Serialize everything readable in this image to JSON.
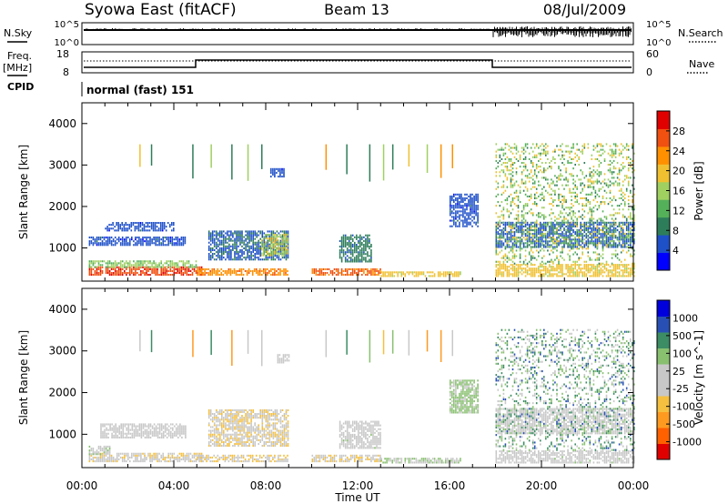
{
  "header": {
    "station": "Syowa East (fitACF)",
    "beam": "Beam 13",
    "date": "08/Jul/2009"
  },
  "top_panels": {
    "nsky_label": "N.Sky",
    "nsearch_label": "N.Search",
    "nsky_ticks": [
      "10^5",
      "10^0"
    ],
    "nsearch_ticks": [
      "10^5",
      "10^0"
    ],
    "freq_label_1": "Freq.",
    "freq_label_2": "[MHz]",
    "freq_ticks": [
      "18",
      "8"
    ],
    "nave_label": "Nave",
    "nave_ticks": [
      "60",
      "0"
    ],
    "cpid_label": "CPID",
    "cpid_text": "normal (fast) 151"
  },
  "colors": {
    "power": [
      "#0000ff",
      "#1e50c8",
      "#2e7d5a",
      "#55b05a",
      "#a0d060",
      "#f0c030",
      "#ff9000",
      "#f05010",
      "#e00000"
    ],
    "velocity": [
      "#e00000",
      "#ff6000",
      "#ff9a20",
      "#f5c040",
      "#c8c8c8",
      "#c8c8c8",
      "#88c070",
      "#3c8c64",
      "#2850b4",
      "#0000dc"
    ]
  },
  "chart_data": [
    {
      "type": "heatmap",
      "name": "power",
      "ylabel": "Slant Range [km]",
      "xlabel": "",
      "ylim": [
        200,
        4500
      ],
      "xlim_hours": [
        0,
        24
      ],
      "y_ticks": [
        "1000",
        "2000",
        "3000",
        "4000"
      ],
      "x_ticks": [
        "00:00",
        "04:00",
        "08:00",
        "12:00",
        "16:00",
        "20:00",
        "00:00"
      ],
      "colorbar": {
        "label": "Power [dB]",
        "ticks": [
          "4",
          "8",
          "12",
          "16",
          "20",
          "24",
          "28"
        ],
        "range": [
          0,
          30
        ]
      },
      "regions": [
        {
          "t0": 0.3,
          "t1": 5.2,
          "r0": 330,
          "r1": 520,
          "level": 26
        },
        {
          "t0": 0.3,
          "t1": 5.0,
          "r0": 520,
          "r1": 700,
          "level": 14
        },
        {
          "t0": 0.3,
          "t1": 4.5,
          "r0": 1050,
          "r1": 1250,
          "level": 5
        },
        {
          "t0": 1.0,
          "t1": 4.0,
          "r0": 1400,
          "r1": 1600,
          "level": 5
        },
        {
          "t0": 5.0,
          "t1": 9.0,
          "r0": 330,
          "r1": 480,
          "level": 22
        },
        {
          "t0": 5.5,
          "t1": 9.0,
          "r0": 700,
          "r1": 1400,
          "level": 6
        },
        {
          "t0": 7.8,
          "t1": 9.0,
          "r0": 800,
          "r1": 1300,
          "level": 16
        },
        {
          "t0": 8.2,
          "t1": 8.8,
          "r0": 2700,
          "r1": 2900,
          "level": 5
        },
        {
          "t0": 10.0,
          "t1": 13.0,
          "r0": 330,
          "r1": 500,
          "level": 24
        },
        {
          "t0": 11.2,
          "t1": 12.6,
          "r0": 650,
          "r1": 1300,
          "level": 8
        },
        {
          "t0": 13.0,
          "t1": 16.5,
          "r0": 300,
          "r1": 400,
          "level": 18
        },
        {
          "t0": 16.0,
          "t1": 17.2,
          "r0": 1500,
          "r1": 2300,
          "level": 5
        },
        {
          "t0": 18.0,
          "t1": 24.0,
          "r0": 300,
          "r1": 600,
          "level": 18
        },
        {
          "t0": 18.0,
          "t1": 24.0,
          "r0": 1000,
          "r1": 1600,
          "level": 6
        },
        {
          "t0": 18.0,
          "t1": 24.0,
          "r0": 600,
          "r1": 3500,
          "level": 14
        }
      ]
    },
    {
      "type": "heatmap",
      "name": "velocity",
      "ylabel": "Slant Range [km]",
      "xlabel": "Time UT",
      "ylim": [
        200,
        4500
      ],
      "xlim_hours": [
        0,
        24
      ],
      "y_ticks": [
        "1000",
        "2000",
        "3000",
        "4000"
      ],
      "x_ticks": [
        "00:00",
        "04:00",
        "08:00",
        "12:00",
        "16:00",
        "20:00",
        "00:00"
      ],
      "colorbar": {
        "label": "Velocity [m s^-1]",
        "ticks": [
          "-1000",
          "-500",
          "-100",
          "-25",
          "25",
          "100",
          "500",
          "1000"
        ],
        "range": [
          -1200,
          1200
        ]
      },
      "regions": [
        {
          "t0": 0.3,
          "t1": 5.2,
          "r0": 330,
          "r1": 520,
          "level": -150
        },
        {
          "t0": 0.3,
          "t1": 1.2,
          "r0": 500,
          "r1": 700,
          "level": 150
        },
        {
          "t0": 0.8,
          "t1": 4.5,
          "r0": 900,
          "r1": 1250,
          "level": 0
        },
        {
          "t0": 5.0,
          "t1": 9.0,
          "r0": 330,
          "r1": 480,
          "level": -200
        },
        {
          "t0": 5.5,
          "t1": 9.0,
          "r0": 700,
          "r1": 1600,
          "level": -200
        },
        {
          "t0": 8.5,
          "t1": 9.0,
          "r0": 2700,
          "r1": 2900,
          "level": 0
        },
        {
          "t0": 10.0,
          "t1": 13.0,
          "r0": 330,
          "r1": 500,
          "level": -200
        },
        {
          "t0": 11.2,
          "t1": 13.0,
          "r0": 650,
          "r1": 1300,
          "level": 100
        },
        {
          "t0": 13.0,
          "t1": 16.5,
          "r0": 300,
          "r1": 400,
          "level": 200
        },
        {
          "t0": 16.0,
          "t1": 17.2,
          "r0": 1500,
          "r1": 2300,
          "level": 300
        },
        {
          "t0": 18.0,
          "t1": 24.0,
          "r0": 300,
          "r1": 600,
          "level": 100
        },
        {
          "t0": 18.0,
          "t1": 24.0,
          "r0": 1000,
          "r1": 1600,
          "level": 0
        },
        {
          "t0": 18.0,
          "t1": 24.0,
          "r0": 600,
          "r1": 3500,
          "level": 400
        }
      ]
    }
  ]
}
